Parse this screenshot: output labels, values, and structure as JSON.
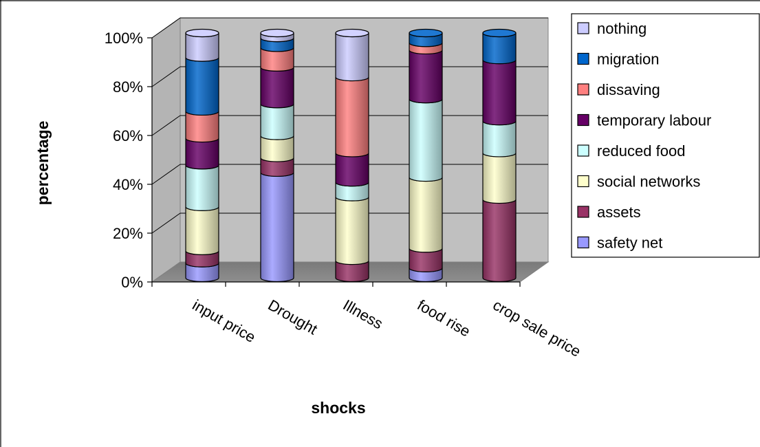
{
  "chart_data": {
    "type": "bar",
    "stacked": true,
    "three_d": true,
    "bar_shape": "cylinder",
    "title": "",
    "xlabel": "shocks",
    "ylabel": "percentage",
    "ylim": [
      0,
      100
    ],
    "y_ticks": [
      "0%",
      "20%",
      "40%",
      "60%",
      "80%",
      "100%"
    ],
    "y_tick_values": [
      0,
      20,
      40,
      60,
      80,
      100
    ],
    "grid": true,
    "legend_position": "right",
    "categories": [
      "input price",
      "Drought",
      "Illness",
      "food rise",
      "crop sale price"
    ],
    "series": [
      {
        "name": "safety net",
        "color": "#9999ff",
        "values": [
          6,
          43,
          0,
          4,
          0
        ]
      },
      {
        "name": "assets",
        "color": "#993366",
        "values": [
          5,
          6,
          7,
          8,
          32
        ]
      },
      {
        "name": "social networks",
        "color": "#ffffcc",
        "values": [
          18,
          9,
          26,
          29,
          19
        ]
      },
      {
        "name": "reduced food",
        "color": "#ccffff",
        "values": [
          17,
          13,
          6,
          32,
          13
        ]
      },
      {
        "name": "temporary labour",
        "color": "#660066",
        "values": [
          11,
          15,
          12,
          20,
          25
        ]
      },
      {
        "name": "dissaving",
        "color": "#ff8080",
        "values": [
          11,
          8,
          31,
          3,
          0
        ]
      },
      {
        "name": "migration",
        "color": "#0066cc",
        "values": [
          22,
          4,
          0,
          4,
          11
        ]
      },
      {
        "name": "nothing",
        "color": "#ccccff",
        "values": [
          10,
          2,
          18,
          0,
          0
        ]
      }
    ]
  }
}
